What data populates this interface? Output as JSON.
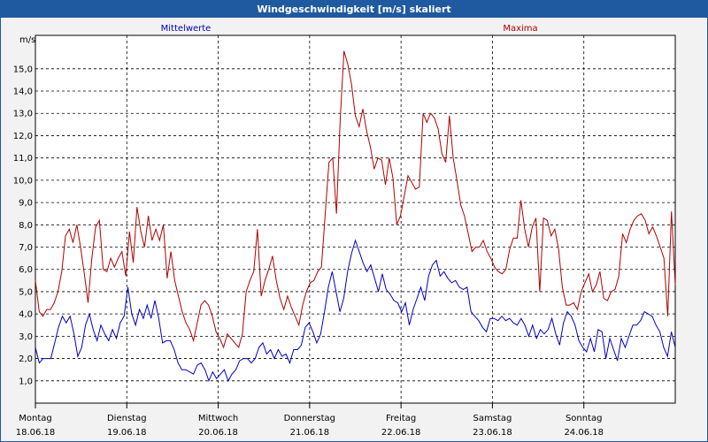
{
  "title": "Windgeschwindigkeit [m/s] skaliert",
  "colors": {
    "titlebar": "#1f5aa0",
    "mean": "#0000c0",
    "max": "#b00000"
  },
  "chart_data": {
    "type": "line",
    "ylabel": "m/s",
    "ylim": [
      0,
      16.5
    ],
    "y_ticks": [
      "1,0",
      "2,0",
      "3,0",
      "4,0",
      "5,0",
      "6,0",
      "7,0",
      "8,0",
      "9,0",
      "10,0",
      "11,0",
      "12,0",
      "13,0",
      "14,0",
      "15,0"
    ],
    "x_ticks": [
      {
        "day": "Montag",
        "date": "18.06.18"
      },
      {
        "day": "Dienstag",
        "date": "19.06.18"
      },
      {
        "day": "Mittwoch",
        "date": "20.06.18"
      },
      {
        "day": "Donnerstag",
        "date": "21.06.18"
      },
      {
        "day": "Freitag",
        "date": "22.06.18"
      },
      {
        "day": "Samstag",
        "date": "23.06.18"
      },
      {
        "day": "Sonntag",
        "date": "24.06.18"
      }
    ],
    "grid": true,
    "series": [
      {
        "name": "Mittelwerte",
        "values": [
          2.5,
          1.8,
          2.0,
          2.0,
          2.0,
          2.7,
          3.4,
          3.9,
          3.6,
          3.9,
          3.1,
          2.1,
          2.5,
          3.5,
          4.0,
          3.3,
          2.8,
          3.5,
          3.1,
          2.8,
          3.3,
          2.9,
          3.6,
          3.9,
          5.2,
          4.0,
          3.5,
          4.2,
          3.8,
          4.4,
          3.8,
          4.6,
          3.8,
          2.7,
          2.8,
          2.8,
          2.4,
          1.8,
          1.5,
          1.5,
          1.4,
          1.3,
          1.7,
          1.8,
          1.5,
          1.0,
          1.4,
          1.1,
          1.3,
          1.5,
          1.0,
          1.3,
          1.5,
          1.9,
          2.0,
          2.0,
          1.8,
          2.0,
          2.5,
          2.7,
          2.2,
          2.4,
          2.0,
          2.4,
          2.1,
          2.2,
          1.8,
          2.4,
          2.4,
          2.6,
          3.4,
          3.6,
          3.2,
          2.7,
          3.1,
          4.1,
          5.2,
          5.9,
          5.0,
          4.1,
          4.7,
          5.9,
          6.7,
          7.3,
          6.8,
          6.3,
          5.9,
          6.2,
          5.6,
          5.0,
          5.8,
          5.1,
          4.9,
          4.6,
          4.5,
          4.1,
          4.5,
          3.5,
          4.2,
          4.7,
          5.2,
          4.6,
          5.7,
          6.2,
          6.4,
          5.7,
          5.9,
          5.6,
          5.4,
          5.5,
          5.2,
          5.1,
          5.2,
          4.1,
          3.9,
          3.7,
          3.4,
          3.2,
          3.8,
          3.8,
          3.7,
          3.9,
          3.7,
          3.8,
          3.6,
          3.5,
          3.8,
          3.5,
          3.0,
          3.5,
          2.9,
          3.3,
          3.1,
          3.3,
          3.8,
          3.1,
          2.6,
          3.6,
          4.1,
          3.9,
          3.5,
          2.8,
          2.5,
          2.3,
          2.9,
          2.3,
          3.3,
          3.2,
          2.0,
          2.9,
          2.4,
          1.9,
          2.9,
          2.5,
          3.0,
          3.5,
          3.5,
          3.7,
          4.1,
          4.0,
          3.9,
          3.5,
          3.2,
          2.5,
          2.1,
          3.2,
          2.5
        ]
      },
      {
        "name": "Maxima",
        "values": [
          5.5,
          4.1,
          3.9,
          4.2,
          4.2,
          4.5,
          5.0,
          5.9,
          7.5,
          7.8,
          7.2,
          8.0,
          7.0,
          5.8,
          4.5,
          6.5,
          7.9,
          8.2,
          6.0,
          5.9,
          6.5,
          6.1,
          6.5,
          6.8,
          5.7,
          7.7,
          6.3,
          8.8,
          7.7,
          7.0,
          8.4,
          7.3,
          7.8,
          7.3,
          8.0,
          5.6,
          6.8,
          5.5,
          4.8,
          4.1,
          3.6,
          3.3,
          2.8,
          3.6,
          4.4,
          4.6,
          4.4,
          3.9,
          3.2,
          2.9,
          2.5,
          3.1,
          2.9,
          2.7,
          2.5,
          3.1,
          5.0,
          5.5,
          5.9,
          7.8,
          4.8,
          5.5,
          6.0,
          6.6,
          5.5,
          4.7,
          4.2,
          4.8,
          4.3,
          3.9,
          3.5,
          4.4,
          5.0,
          5.4,
          5.5,
          5.9,
          6.1,
          8.5,
          10.8,
          11.0,
          8.5,
          12.8,
          15.8,
          15.2,
          14.3,
          12.9,
          12.4,
          13.2,
          12.2,
          11.5,
          10.5,
          11.0,
          10.9,
          9.8,
          11.0,
          10.1,
          8.0,
          8.4,
          9.3,
          10.2,
          9.9,
          9.6,
          9.7,
          13.0,
          12.6,
          13.0,
          12.8,
          12.3,
          11.2,
          10.8,
          12.9,
          11.0,
          10.0,
          8.9,
          8.4,
          7.6,
          6.8,
          7.0,
          7.0,
          7.3,
          6.8,
          6.5,
          6.1,
          5.9,
          5.8,
          6.0,
          6.9,
          7.4,
          7.4,
          9.1,
          7.8,
          7.0,
          7.9,
          8.3,
          5.0,
          8.3,
          8.2,
          7.5,
          7.8,
          6.9,
          5.2,
          4.4,
          4.4,
          4.5,
          4.2,
          5.0,
          5.4,
          5.8,
          5.0,
          5.3,
          5.9,
          4.7,
          4.6,
          5.0,
          5.1,
          5.7,
          7.6,
          7.2,
          7.8,
          8.2,
          8.4,
          8.5,
          8.2,
          7.6,
          7.9,
          7.5,
          7.0,
          6.5,
          3.9,
          8.6,
          5.3
        ]
      }
    ]
  }
}
